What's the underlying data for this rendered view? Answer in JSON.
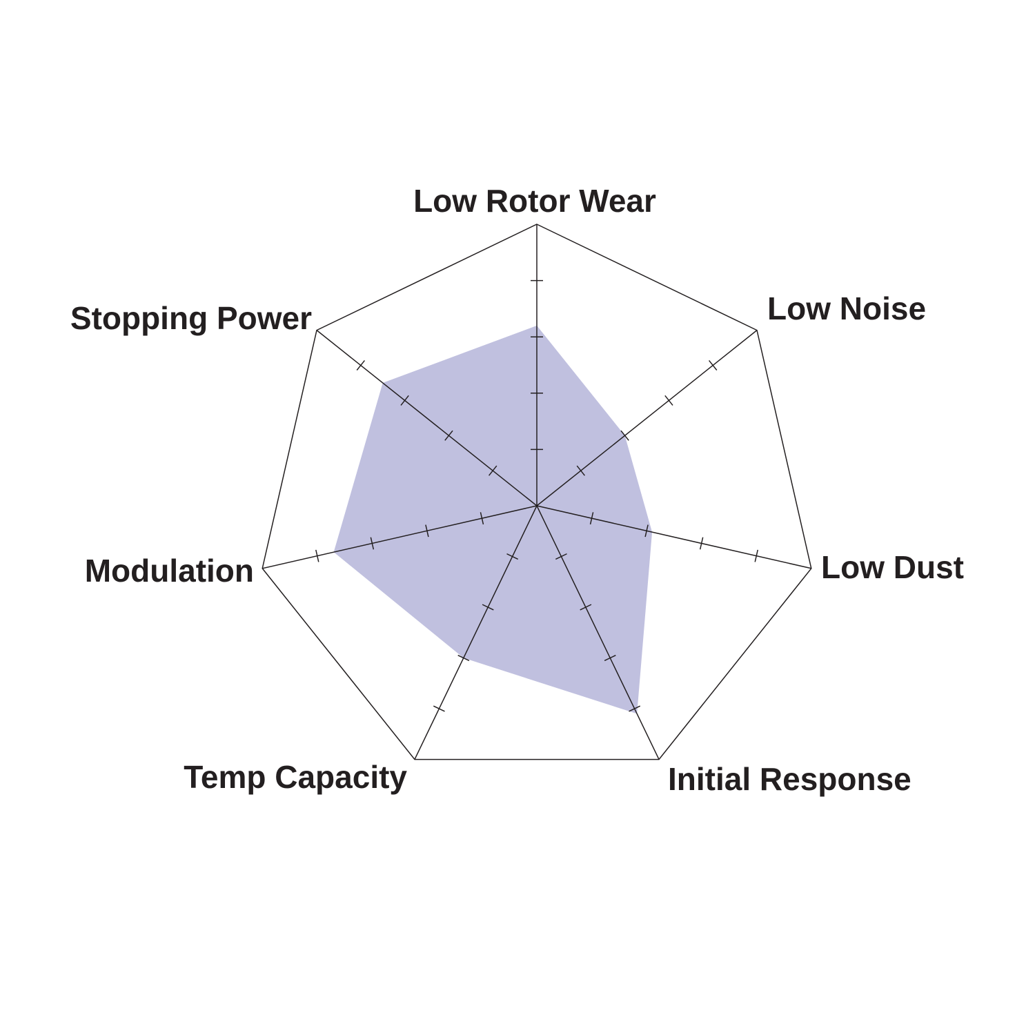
{
  "chart_data": {
    "type": "radar",
    "title": "",
    "axes": [
      "Low Rotor Wear",
      "Low Noise",
      "Low Dust",
      "Initial Response",
      "Temp Capacity",
      "Modulation",
      "Stopping Power"
    ],
    "values": [
      3.2,
      2.0,
      2.1,
      4.1,
      3.0,
      3.7,
      3.5
    ],
    "range": [
      0,
      5
    ],
    "ticks": [
      1,
      2,
      3,
      4,
      5
    ],
    "grid": "outer polygon only with tick marks on spokes",
    "legend": "none",
    "colors": {
      "fill": "#c0c0df",
      "line": "#231f20",
      "text": "#231f20"
    }
  }
}
